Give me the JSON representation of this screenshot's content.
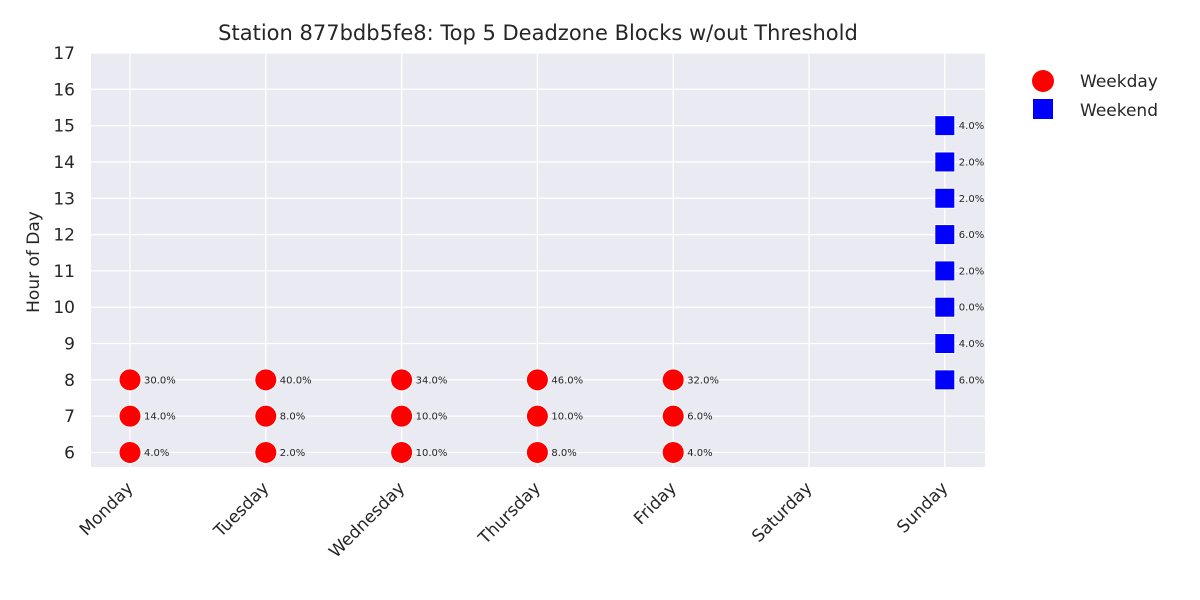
{
  "chart_data": {
    "type": "scatter",
    "title": "Station 877bdb5fe8: Top 5 Deadzone Blocks w/out Threshold",
    "xlabel": "",
    "ylabel": "Hour of Day",
    "categories": [
      "Monday",
      "Tuesday",
      "Wednesday",
      "Thursday",
      "Friday",
      "Saturday",
      "Sunday"
    ],
    "ylim": [
      5.6,
      17
    ],
    "yticks": [
      6,
      7,
      8,
      9,
      10,
      11,
      12,
      13,
      14,
      15,
      16,
      17
    ],
    "grid": true,
    "legend_position": "outside-top-right",
    "series": [
      {
        "name": "Weekday",
        "marker": "circle",
        "color": "#ff0000",
        "points": [
          {
            "day": "Monday",
            "hour": 8,
            "label": "30.0%"
          },
          {
            "day": "Monday",
            "hour": 7,
            "label": "14.0%"
          },
          {
            "day": "Monday",
            "hour": 6,
            "label": "4.0%"
          },
          {
            "day": "Tuesday",
            "hour": 8,
            "label": "40.0%"
          },
          {
            "day": "Tuesday",
            "hour": 7,
            "label": "8.0%"
          },
          {
            "day": "Tuesday",
            "hour": 6,
            "label": "2.0%"
          },
          {
            "day": "Wednesday",
            "hour": 8,
            "label": "34.0%"
          },
          {
            "day": "Wednesday",
            "hour": 7,
            "label": "10.0%"
          },
          {
            "day": "Wednesday",
            "hour": 6,
            "label": "10.0%"
          },
          {
            "day": "Thursday",
            "hour": 8,
            "label": "46.0%"
          },
          {
            "day": "Thursday",
            "hour": 7,
            "label": "10.0%"
          },
          {
            "day": "Thursday",
            "hour": 6,
            "label": "8.0%"
          },
          {
            "day": "Friday",
            "hour": 8,
            "label": "32.0%"
          },
          {
            "day": "Friday",
            "hour": 7,
            "label": "6.0%"
          },
          {
            "day": "Friday",
            "hour": 6,
            "label": "4.0%"
          }
        ]
      },
      {
        "name": "Weekend",
        "marker": "square",
        "color": "#0000ff",
        "points": [
          {
            "day": "Sunday",
            "hour": 15,
            "label": "4.0%"
          },
          {
            "day": "Sunday",
            "hour": 14,
            "label": "2.0%"
          },
          {
            "day": "Sunday",
            "hour": 13,
            "label": "2.0%"
          },
          {
            "day": "Sunday",
            "hour": 12,
            "label": "6.0%"
          },
          {
            "day": "Sunday",
            "hour": 11,
            "label": "2.0%"
          },
          {
            "day": "Sunday",
            "hour": 10,
            "label": "0.0%"
          },
          {
            "day": "Sunday",
            "hour": 9,
            "label": "4.0%"
          },
          {
            "day": "Sunday",
            "hour": 8,
            "label": "6.0%"
          }
        ]
      }
    ]
  },
  "colors": {
    "plot_background": "#eaeaf2",
    "grid": "#ffffff",
    "text": "#262626"
  }
}
